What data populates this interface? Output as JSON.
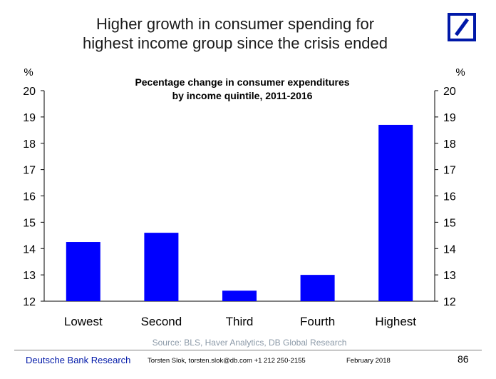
{
  "slide": {
    "title_line1": "Higher growth in consumer spending for",
    "title_line2": "highest income group since the crisis ended",
    "logo": "deutsche-bank-slash-logo",
    "brand_color": "#0018a8"
  },
  "footer": {
    "brand": "Deutsche Bank Research",
    "author": "Torsten Slok, torsten.slok@db.com  +1 212 250-2155",
    "date": "February 2018",
    "page": "86"
  },
  "chart_data": {
    "type": "bar",
    "title_line1": "Pecentage change in consumer expenditures",
    "title_line2": "by income quintile, 2011-2016",
    "categories": [
      "Lowest",
      "Second",
      "Third",
      "Fourth",
      "Highest"
    ],
    "values": [
      14.25,
      14.6,
      12.4,
      13.0,
      18.7
    ],
    "ylim": [
      12,
      20
    ],
    "yticks": [
      12,
      13,
      14,
      15,
      16,
      17,
      18,
      19,
      20
    ],
    "y_unit_left": "%",
    "y_unit_right": "%",
    "source": "Source: BLS, Haver Analytics, DB Global Research",
    "bar_color": "#0000ff",
    "grid": false,
    "legend": "none"
  }
}
